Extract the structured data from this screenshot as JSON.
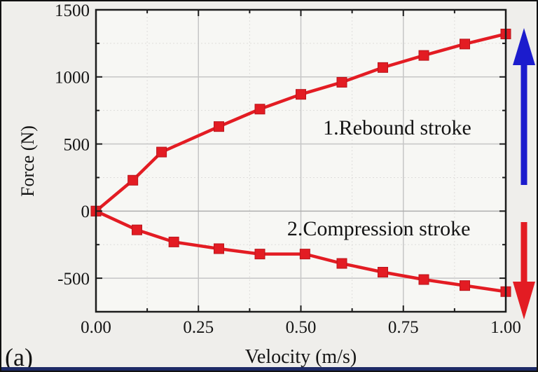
{
  "panel_label": "(a)",
  "colors": {
    "series": "#e31c23",
    "series_edge": "#b9151b",
    "arrow_up": "#1c1ccd",
    "arrow_down": "#e31c23",
    "frame": "#1c1c1c",
    "grid_major": "#c6c6c6",
    "grid_zero": "#aeaeae",
    "grid_minor": "#dedddb",
    "page_bg": "#efeeeb",
    "plot_bg": "#f7f7f4",
    "bottom_strip": "#1d2a66",
    "text": "#141414"
  },
  "chart_data": {
    "type": "line",
    "title": "",
    "xlabel": "Velocity (m/s)",
    "ylabel": "Force (N)",
    "xlim": [
      0,
      1
    ],
    "ylim": [
      -750,
      1500
    ],
    "grid": true,
    "legend": "none",
    "x_ticks": [
      {
        "v": 0.0,
        "label": "0.00"
      },
      {
        "v": 0.25,
        "label": "0.25"
      },
      {
        "v": 0.5,
        "label": "0.50"
      },
      {
        "v": 0.75,
        "label": "0.75"
      },
      {
        "v": 1.0,
        "label": "1.00"
      }
    ],
    "x_minor_ticks": [
      0.125,
      0.375,
      0.625,
      0.875
    ],
    "y_ticks": [
      {
        "v": 1500,
        "label": "1500"
      },
      {
        "v": 1000,
        "label": "1000"
      },
      {
        "v": 500,
        "label": "500"
      },
      {
        "v": 0,
        "label": "0"
      },
      {
        "v": -500,
        "label": "-500"
      }
    ],
    "y_minor_ticks": [
      1250,
      750,
      250,
      -250
    ],
    "series": [
      {
        "name": "Rebound stroke",
        "marker": "square",
        "color": "#e31c23",
        "x": [
          0,
          0.09,
          0.16,
          0.3,
          0.4,
          0.5,
          0.6,
          0.7,
          0.8,
          0.9,
          1.0
        ],
        "y": [
          0,
          230,
          440,
          630,
          760,
          870,
          960,
          1070,
          1160,
          1245,
          1320
        ]
      },
      {
        "name": "Compression stroke",
        "marker": "square",
        "color": "#e31c23",
        "x": [
          0,
          0.1,
          0.19,
          0.3,
          0.4,
          0.51,
          0.6,
          0.7,
          0.8,
          0.9,
          1.0
        ],
        "y": [
          0,
          -140,
          -230,
          -280,
          -320,
          -320,
          -390,
          -455,
          -510,
          -555,
          -600
        ]
      }
    ],
    "annotations": [
      {
        "text": "1.Rebound stroke",
        "x": 0.735,
        "y": 620
      },
      {
        "text": "2.Compression stroke",
        "x": 0.69,
        "y": -135
      }
    ],
    "arrows": [
      {
        "name": "rebound-direction-arrow",
        "direction": "up",
        "color": "#1c1ccd"
      },
      {
        "name": "compression-direction-arrow",
        "direction": "down",
        "color": "#e31c23"
      }
    ]
  }
}
